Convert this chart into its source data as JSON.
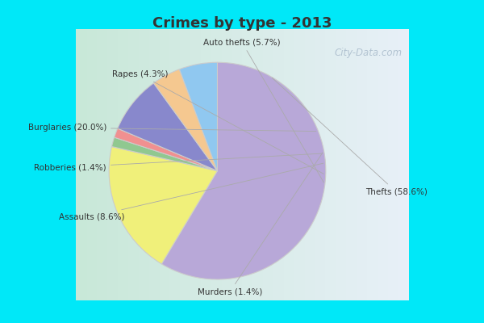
{
  "title": "Crimes by type - 2013",
  "slices": [
    {
      "label": "Thefts",
      "pct": 58.6,
      "color": "#b8a8d8"
    },
    {
      "label": "Burglaries",
      "pct": 20.0,
      "color": "#f0f07a"
    },
    {
      "label": "Murders",
      "pct": 1.4,
      "color": "#90c890"
    },
    {
      "label": "Robberies",
      "pct": 1.4,
      "color": "#f09090"
    },
    {
      "label": "Assaults",
      "pct": 8.6,
      "color": "#8888cc"
    },
    {
      "label": "Rapes",
      "pct": 4.3,
      "color": "#f5c890"
    },
    {
      "label": "Auto thefts",
      "pct": 5.7,
      "color": "#90c8f0"
    }
  ],
  "border_color": "#00e8f8",
  "bg_left_color": "#c8e8d8",
  "bg_right_color": "#e8f0f8",
  "title_color": "#333333",
  "label_color": "#333333",
  "watermark": "City-Data.com",
  "watermark_color": "#aabccc"
}
